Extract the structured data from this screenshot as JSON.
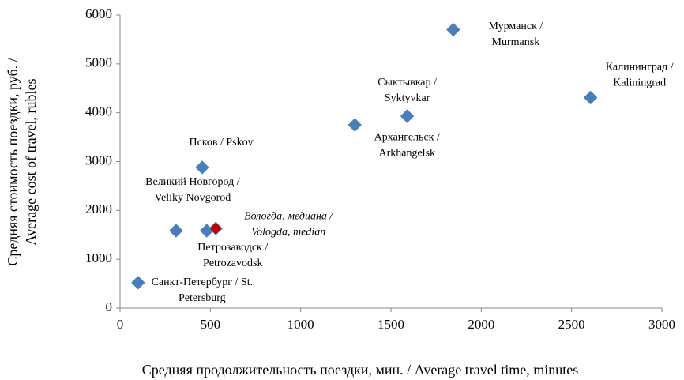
{
  "chart_data": {
    "type": "scatter",
    "x_label": "Средняя продолжительность поездки, мин. / Average travel time, minutes",
    "y_label": [
      "Средняя стоимость поездки, руб. /",
      "Average cost of travel, rubles"
    ],
    "x": [
      100,
      310,
      480,
      530,
      455,
      1300,
      1590,
      1845,
      2605
    ],
    "values": [
      520,
      1585,
      1585,
      1630,
      2880,
      3750,
      3930,
      5700,
      4310
    ],
    "labels": [
      [
        "Санкт-Петербург / St.",
        "Petersburg"
      ],
      [
        "Великий Новгород /",
        "Veliky Novgorod"
      ],
      [
        "Петрозаводск /",
        "Petrozavodsk"
      ],
      [
        "Вологда, медиана /",
        "Vologda, median"
      ],
      [
        "Псков / Pskov"
      ],
      [
        "Архангельск /",
        "Arkhangelsk"
      ],
      [
        "Сыктывкар /",
        "Syktyvkar"
      ],
      [
        "Мурманск /",
        "Murmansk"
      ],
      [
        "Калининград /",
        "Kaliningrad"
      ]
    ],
    "colors": [
      "#4a7ebb",
      "#4a7ebb",
      "#4a7ebb",
      "#c00000",
      "#4a7ebb",
      "#4a7ebb",
      "#4a7ebb",
      "#4a7ebb",
      "#4a7ebb"
    ],
    "label_style": [
      "normal",
      "normal",
      "normal",
      "italic",
      "normal",
      "normal",
      "normal",
      "normal",
      "normal"
    ],
    "xlim": [
      0,
      3000
    ],
    "xticks": [
      0,
      500,
      1000,
      1500,
      2000,
      2500,
      3000
    ],
    "ylim": [
      0,
      6000
    ],
    "yticks": [
      0,
      1000,
      2000,
      3000,
      4000,
      5000,
      6000
    ],
    "grid": false
  }
}
